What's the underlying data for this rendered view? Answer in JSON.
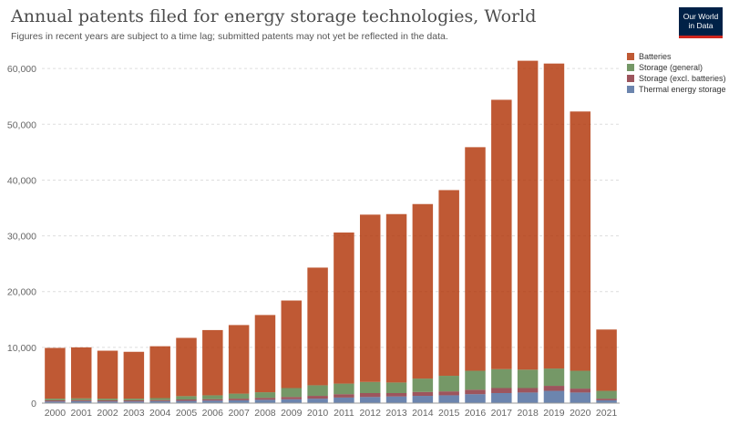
{
  "header": {
    "title": "Annual patents filed for energy storage technologies, World",
    "subtitle": "Figures in recent years are subject to a time lag; submitted patents may not yet be reflected in the data."
  },
  "logo": {
    "line1": "Our World",
    "line2": "in Data",
    "background": "#002147",
    "accent": "#ce261e"
  },
  "chart_data": {
    "type": "bar",
    "stacked": true,
    "title": "Annual patents filed for energy storage technologies, World",
    "subtitle": "Figures in recent years are subject to a time lag; submitted patents may not yet be reflected in the data.",
    "xlabel": "",
    "ylabel": "",
    "ylim": [
      0,
      60000
    ],
    "yticks": [
      0,
      10000,
      20000,
      30000,
      40000,
      50000,
      60000
    ],
    "ytick_labels": [
      "0",
      "10,000",
      "20,000",
      "30,000",
      "40,000",
      "50,000",
      "60,000"
    ],
    "grid": "horizontal dashed",
    "legend_position": "right",
    "categories": [
      "2000",
      "2001",
      "2002",
      "2003",
      "2004",
      "2005",
      "2006",
      "2007",
      "2008",
      "2009",
      "2010",
      "2011",
      "2012",
      "2013",
      "2014",
      "2015",
      "2016",
      "2017",
      "2018",
      "2019",
      "2020",
      "2021"
    ],
    "series": [
      {
        "name": "Thermal energy storage",
        "color": "#4c6a9c",
        "values": [
          300,
          350,
          300,
          300,
          350,
          400,
          450,
          500,
          600,
          700,
          800,
          1000,
          1100,
          1200,
          1300,
          1400,
          1600,
          1800,
          1900,
          2200,
          1900,
          500
        ]
      },
      {
        "name": "Storage (excl. batteries)",
        "color": "#883039",
        "values": [
          200,
          200,
          200,
          200,
          200,
          250,
          250,
          300,
          350,
          400,
          500,
          600,
          700,
          600,
          700,
          700,
          800,
          900,
          800,
          900,
          700,
          300
        ]
      },
      {
        "name": "Storage (general)",
        "color": "#578145",
        "values": [
          300,
          300,
          300,
          300,
          350,
          600,
          700,
          900,
          1000,
          1600,
          1900,
          1900,
          2000,
          1900,
          2400,
          2800,
          3400,
          3400,
          3300,
          3100,
          3200,
          1400
        ]
      },
      {
        "name": "Batteries",
        "color": "#b13507",
        "values": [
          9100,
          9150,
          8600,
          8400,
          9300,
          10450,
          11700,
          12300,
          13850,
          15700,
          21100,
          27100,
          30000,
          30200,
          31300,
          33300,
          40100,
          48300,
          55400,
          54700,
          46500,
          11000
        ]
      }
    ]
  }
}
